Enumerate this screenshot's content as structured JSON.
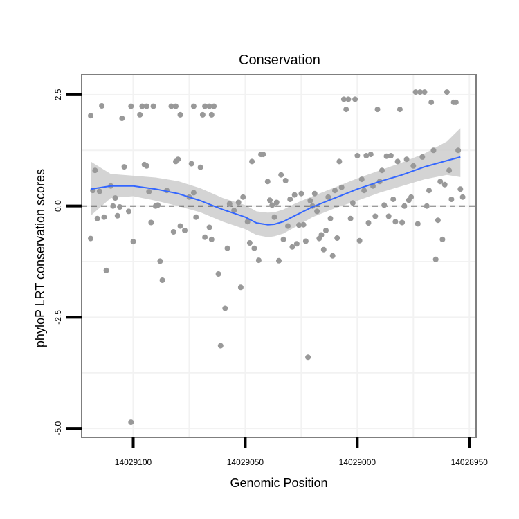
{
  "chart_data": {
    "type": "scatter",
    "title": "Conservation",
    "xlabel": "Genomic Position",
    "ylabel": "phyloP LRT conservation scores",
    "x_reversed": true,
    "xlim": [
      14029123,
      14028947
    ],
    "ylim": [
      -5.2,
      2.95
    ],
    "x_ticks": [
      14029100,
      14029050,
      14029000,
      14028950
    ],
    "x_tick_labels": [
      "14029100",
      "14029050",
      "14029000",
      "14028950"
    ],
    "y_ticks": [
      2.5,
      0.0,
      -2.5,
      -5.0
    ],
    "y_tick_labels": [
      "2.5",
      "0.0",
      "-2.5",
      "-5.0"
    ],
    "reference_line": {
      "y": 0,
      "style": "dashed"
    },
    "colors": {
      "points": "#999999",
      "smooth_line": "#3366ff",
      "ribbon": "#cccccc",
      "border": "#7f7f7f",
      "grid": "#f2f2f2"
    },
    "points": [
      {
        "x": 14029119,
        "y": 2.03
      },
      {
        "x": 14029114,
        "y": 2.25
      },
      {
        "x": 14029101,
        "y": 2.24
      },
      {
        "x": 14029096,
        "y": 2.24
      },
      {
        "x": 14029094,
        "y": 2.24
      },
      {
        "x": 14029091,
        "y": 2.24
      },
      {
        "x": 14029083,
        "y": 2.24
      },
      {
        "x": 14029081,
        "y": 2.24
      },
      {
        "x": 14029073,
        "y": 2.24
      },
      {
        "x": 14029068,
        "y": 2.24
      },
      {
        "x": 14029066,
        "y": 2.24
      },
      {
        "x": 14029064,
        "y": 2.24
      },
      {
        "x": 14029105,
        "y": 1.97
      },
      {
        "x": 14029097,
        "y": 2.05
      },
      {
        "x": 14029079,
        "y": 2.05
      },
      {
        "x": 14029069,
        "y": 2.05
      },
      {
        "x": 14029065,
        "y": 2.05
      },
      {
        "x": 14029117,
        "y": 0.8
      },
      {
        "x": 14029118,
        "y": 0.35
      },
      {
        "x": 14029115,
        "y": 0.33
      },
      {
        "x": 14029110,
        "y": 0.45
      },
      {
        "x": 14029104,
        "y": 0.88
      },
      {
        "x": 14029108,
        "y": 0.18
      },
      {
        "x": 14029106,
        "y": -0.02
      },
      {
        "x": 14029116,
        "y": -0.28
      },
      {
        "x": 14029113,
        "y": -0.25
      },
      {
        "x": 14029119,
        "y": -0.73
      },
      {
        "x": 14029112,
        "y": -1.45
      },
      {
        "x": 14029109,
        "y": 0.0
      },
      {
        "x": 14029107,
        "y": -0.22
      },
      {
        "x": 14029102,
        "y": -0.12
      },
      {
        "x": 14029100,
        "y": -0.8
      },
      {
        "x": 14029101,
        "y": -4.86
      },
      {
        "x": 14029095,
        "y": 0.93
      },
      {
        "x": 14029094,
        "y": 0.9
      },
      {
        "x": 14029093,
        "y": 0.32
      },
      {
        "x": 14029092,
        "y": -0.37
      },
      {
        "x": 14029090,
        "y": 0.0
      },
      {
        "x": 14029089,
        "y": 0.02
      },
      {
        "x": 14029088,
        "y": -1.24
      },
      {
        "x": 14029087,
        "y": -1.67
      },
      {
        "x": 14029085,
        "y": 0.35
      },
      {
        "x": 14029082,
        "y": -0.58
      },
      {
        "x": 14029081,
        "y": 1.0
      },
      {
        "x": 14029080,
        "y": 1.05
      },
      {
        "x": 14029079,
        "y": -0.45
      },
      {
        "x": 14029077,
        "y": -0.55
      },
      {
        "x": 14029075,
        "y": 0.2
      },
      {
        "x": 14029074,
        "y": 0.95
      },
      {
        "x": 14029073,
        "y": 0.3
      },
      {
        "x": 14029072,
        "y": -0.25
      },
      {
        "x": 14029070,
        "y": 0.87
      },
      {
        "x": 14029068,
        "y": -0.7
      },
      {
        "x": 14029066,
        "y": -0.48
      },
      {
        "x": 14029065,
        "y": -0.75
      },
      {
        "x": 14029062,
        "y": -1.53
      },
      {
        "x": 14029061,
        "y": -3.14
      },
      {
        "x": 14029059,
        "y": -2.3
      },
      {
        "x": 14029058,
        "y": -0.95
      },
      {
        "x": 14029057,
        "y": 0.05
      },
      {
        "x": 14029055,
        "y": -0.1
      },
      {
        "x": 14029053,
        "y": 0.08
      },
      {
        "x": 14029052,
        "y": -1.83
      },
      {
        "x": 14029051,
        "y": 0.2
      },
      {
        "x": 14029049,
        "y": -0.35
      },
      {
        "x": 14029048,
        "y": -0.83
      },
      {
        "x": 14029047,
        "y": 1.0
      },
      {
        "x": 14029046,
        "y": -0.95
      },
      {
        "x": 14029044,
        "y": -1.22
      },
      {
        "x": 14029043,
        "y": 1.16
      },
      {
        "x": 14029042,
        "y": 1.16
      },
      {
        "x": 14029040,
        "y": 0.55
      },
      {
        "x": 14029039,
        "y": 0.13
      },
      {
        "x": 14029038,
        "y": 0.02
      },
      {
        "x": 14029037,
        "y": -0.25
      },
      {
        "x": 14029036,
        "y": 0.08
      },
      {
        "x": 14029035,
        "y": -1.23
      },
      {
        "x": 14029034,
        "y": 0.7
      },
      {
        "x": 14029033,
        "y": -0.75
      },
      {
        "x": 14029032,
        "y": 0.57
      },
      {
        "x": 14029031,
        "y": -0.45
      },
      {
        "x": 14029030,
        "y": 0.15
      },
      {
        "x": 14029029,
        "y": -0.92
      },
      {
        "x": 14029028,
        "y": 0.25
      },
      {
        "x": 14029027,
        "y": -0.85
      },
      {
        "x": 14029026,
        "y": -0.43
      },
      {
        "x": 14029025,
        "y": 0.28
      },
      {
        "x": 14029024,
        "y": -0.42
      },
      {
        "x": 14029023,
        "y": -0.79
      },
      {
        "x": 14029022,
        "y": -3.4
      },
      {
        "x": 14029021,
        "y": 0.12
      },
      {
        "x": 14029020,
        "y": 0.0
      },
      {
        "x": 14029019,
        "y": 0.28
      },
      {
        "x": 14029018,
        "y": -0.12
      },
      {
        "x": 14029017,
        "y": -0.73
      },
      {
        "x": 14029016,
        "y": -0.65
      },
      {
        "x": 14029015,
        "y": -0.98
      },
      {
        "x": 14029014,
        "y": -0.55
      },
      {
        "x": 14029013,
        "y": 0.2
      },
      {
        "x": 14029012,
        "y": -0.28
      },
      {
        "x": 14029011,
        "y": -1.12
      },
      {
        "x": 14029010,
        "y": 0.35
      },
      {
        "x": 14029009,
        "y": -0.72
      },
      {
        "x": 14029008,
        "y": 1.0
      },
      {
        "x": 14029007,
        "y": 0.42
      },
      {
        "x": 14029006,
        "y": 2.4
      },
      {
        "x": 14029005,
        "y": 2.17
      },
      {
        "x": 14029004,
        "y": 2.4
      },
      {
        "x": 14029003,
        "y": -0.28
      },
      {
        "x": 14029002,
        "y": 0.07
      },
      {
        "x": 14029001,
        "y": 2.4
      },
      {
        "x": 14029000,
        "y": 1.13
      },
      {
        "x": 14028999,
        "y": -0.78
      },
      {
        "x": 14028998,
        "y": 0.6
      },
      {
        "x": 14028997,
        "y": 0.35
      },
      {
        "x": 14028996,
        "y": 1.13
      },
      {
        "x": 14028995,
        "y": -0.38
      },
      {
        "x": 14028994,
        "y": 1.16
      },
      {
        "x": 14028993,
        "y": 0.45
      },
      {
        "x": 14028992,
        "y": -0.23
      },
      {
        "x": 14028991,
        "y": 2.17
      },
      {
        "x": 14028990,
        "y": 0.55
      },
      {
        "x": 14028989,
        "y": 0.8
      },
      {
        "x": 14028988,
        "y": 0.02
      },
      {
        "x": 14028987,
        "y": 1.12
      },
      {
        "x": 14028986,
        "y": -0.23
      },
      {
        "x": 14028985,
        "y": 1.13
      },
      {
        "x": 14028984,
        "y": 0.15
      },
      {
        "x": 14028983,
        "y": -0.35
      },
      {
        "x": 14028982,
        "y": 1.0
      },
      {
        "x": 14028981,
        "y": 2.17
      },
      {
        "x": 14028980,
        "y": -0.37
      },
      {
        "x": 14028979,
        "y": 0.0
      },
      {
        "x": 14028978,
        "y": 1.05
      },
      {
        "x": 14028977,
        "y": 0.13
      },
      {
        "x": 14028976,
        "y": 0.2
      },
      {
        "x": 14028975,
        "y": 0.9
      },
      {
        "x": 14028974,
        "y": 2.56
      },
      {
        "x": 14028973,
        "y": -0.4
      },
      {
        "x": 14028972,
        "y": 2.56
      },
      {
        "x": 14028971,
        "y": 1.1
      },
      {
        "x": 14028970,
        "y": 2.56
      },
      {
        "x": 14028969,
        "y": 0.0
      },
      {
        "x": 14028968,
        "y": 0.35
      },
      {
        "x": 14028967,
        "y": 2.33
      },
      {
        "x": 14028966,
        "y": 1.25
      },
      {
        "x": 14028965,
        "y": -1.2
      },
      {
        "x": 14028964,
        "y": -0.32
      },
      {
        "x": 14028963,
        "y": 0.55
      },
      {
        "x": 14028962,
        "y": -0.75
      },
      {
        "x": 14028961,
        "y": 0.48
      },
      {
        "x": 14028960,
        "y": 2.56
      },
      {
        "x": 14028959,
        "y": 0.8
      },
      {
        "x": 14028958,
        "y": 0.15
      },
      {
        "x": 14028957,
        "y": 2.33
      },
      {
        "x": 14028956,
        "y": 2.33
      },
      {
        "x": 14028955,
        "y": 1.25
      },
      {
        "x": 14028954,
        "y": 0.38
      },
      {
        "x": 14028953,
        "y": 0.2
      }
    ],
    "smooth": {
      "x": [
        14029119,
        14029110,
        14029100,
        14029090,
        14029080,
        14029070,
        14029060,
        14029050,
        14029045,
        14029040,
        14029037,
        14029033,
        14029028,
        14029020,
        14029010,
        14029000,
        14028990,
        14028980,
        14028970,
        14028960,
        14028954
      ],
      "y": [
        0.38,
        0.45,
        0.45,
        0.38,
        0.28,
        0.12,
        -0.08,
        -0.25,
        -0.38,
        -0.42,
        -0.41,
        -0.35,
        -0.22,
        -0.02,
        0.18,
        0.38,
        0.55,
        0.7,
        0.88,
        1.02,
        1.1
      ],
      "lower": [
        -0.22,
        0.18,
        0.22,
        0.12,
        0.0,
        -0.14,
        -0.35,
        -0.52,
        -0.65,
        -0.7,
        -0.68,
        -0.62,
        -0.48,
        -0.25,
        -0.05,
        0.12,
        0.3,
        0.45,
        0.6,
        0.7,
        0.65
      ],
      "upper": [
        1.0,
        0.72,
        0.68,
        0.64,
        0.56,
        0.4,
        0.18,
        0.02,
        -0.12,
        -0.15,
        -0.14,
        -0.08,
        0.05,
        0.22,
        0.42,
        0.62,
        0.8,
        0.98,
        1.18,
        1.45,
        1.75
      ]
    }
  }
}
